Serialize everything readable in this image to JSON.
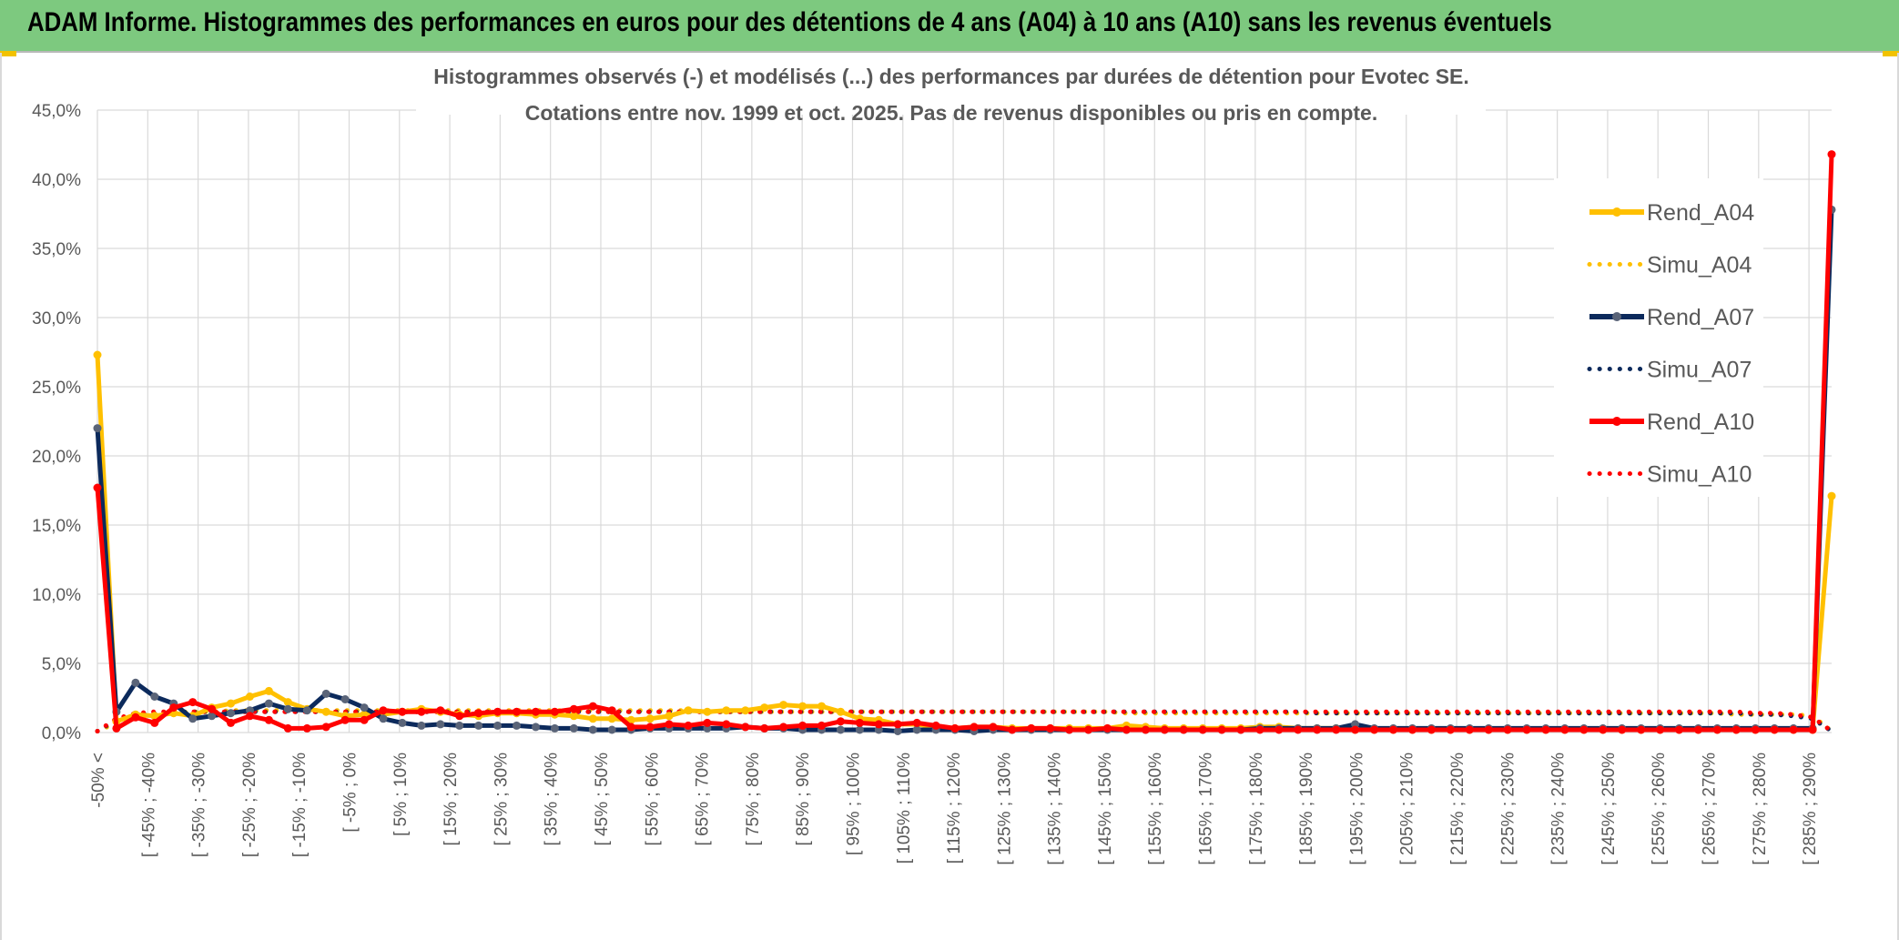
{
  "banner": {
    "title": "ADAM Informe. Histogrammes des performances en euros pour des détentions de 4 ans (A04) à 10 ans (A10) sans les revenus éventuels"
  },
  "colors": {
    "banner": "#7dc97f",
    "A04": "#ffc000",
    "A07": "#0c2a5c",
    "A10": "#ff0000",
    "grid": "#d9d9d9",
    "marker07": "#5a6478"
  },
  "chart_data": {
    "type": "line",
    "title": "Histogrammes observés (-) et modélisés (...) des performances par durées de détention pour Evotec SE.",
    "subtitle": "Cotations entre nov. 1999 et oct. 2025. Pas de revenus disponibles ou pris en compte.",
    "ylim": [
      0,
      45
    ],
    "yticks": [
      "0,0%",
      "5,0%",
      "10,0%",
      "15,0%",
      "20,0%",
      "25,0%",
      "30,0%",
      "35,0%",
      "40,0%",
      "45,0%"
    ],
    "xticklabels": [
      "-50% <",
      "[ -45% ; -40%",
      "[ -35% ; -30%",
      "[ -25% ; -20%",
      "[ -15% ; -10%",
      "[ -5% ; 0%",
      "[ 5% ; 10%",
      "[ 15% ; 20%",
      "[ 25% ; 30%",
      "[ 35% ; 40%",
      "[ 45% ; 50%",
      "[ 55% ; 60%",
      "[ 65% ; 70%",
      "[ 75% ; 80%",
      "[ 85% ; 90%",
      "[ 95% ; 100%",
      "[ 105% ; 110%",
      "[ 115% ; 120%",
      "[ 125% ; 130%",
      "[ 135% ; 140%",
      "[ 145% ; 150%",
      "[ 155% ; 160%",
      "[ 165% ; 170%",
      "[ 175% ; 180%",
      "[ 185% ; 190%",
      "[ 195% ; 200%",
      "[ 205% ; 210%",
      "[ 215% ; 220%",
      "[ 225% ; 230%",
      "[ 235% ; 240%",
      "[ 245% ; 250%",
      "[ 255% ; 260%",
      "[ 265% ; 270%",
      "[ 275% ; 280%",
      "[ 285% ; 290%"
    ],
    "grid": true,
    "legend_position": "right",
    "series": [
      {
        "name": "Rend_A04",
        "style": "solid",
        "values": [
          27.3,
          0.8,
          1.3,
          1.2,
          1.4,
          1.2,
          1.8,
          2.1,
          2.6,
          3.0,
          2.2,
          1.7,
          1.5,
          1.2,
          1.3,
          1.3,
          1.5,
          1.7,
          1.5,
          1.3,
          1.2,
          1.4,
          1.4,
          1.3,
          1.3,
          1.2,
          1.0,
          1.0,
          0.9,
          1.0,
          1.2,
          1.6,
          1.5,
          1.6,
          1.6,
          1.8,
          2.0,
          1.9,
          1.9,
          1.5,
          1.0,
          0.9,
          0.6,
          0.6,
          0.4,
          0.3,
          0.4,
          0.4,
          0.3,
          0.3,
          0.3,
          0.3,
          0.3,
          0.3,
          0.5,
          0.4,
          0.3,
          0.3,
          0.3,
          0.3,
          0.3,
          0.4,
          0.4,
          0.3,
          0.3,
          0.3,
          0.2,
          0.2,
          0.2,
          0.2,
          0.2,
          0.2,
          0.2,
          0.2,
          0.2,
          0.2,
          0.2,
          0.2,
          0.2,
          0.2,
          0.2,
          0.2,
          0.2,
          0.2,
          0.2,
          0.2,
          0.2,
          0.2,
          0.2,
          0.2,
          0.2,
          17.1
        ]
      },
      {
        "name": "Simu_A04",
        "style": "dotted",
        "values": [
          0.1,
          0.7,
          1.1,
          1.3,
          1.4,
          1.5,
          1.5,
          1.6,
          1.6,
          1.6,
          1.6,
          1.6,
          1.6,
          1.6,
          1.6,
          1.6,
          1.6,
          1.6,
          1.6,
          1.6,
          1.6,
          1.6,
          1.6,
          1.6,
          1.6,
          1.6,
          1.6,
          1.6,
          1.6,
          1.6,
          1.6,
          1.6,
          1.5,
          1.5,
          1.5,
          1.5,
          1.5,
          1.5,
          1.5,
          1.5,
          1.5,
          1.5,
          1.5,
          1.5,
          1.5,
          1.5,
          1.5,
          1.5,
          1.5,
          1.5,
          1.5,
          1.5,
          1.5,
          1.5,
          1.4,
          1.4,
          1.4,
          1.4,
          1.4,
          1.4,
          1.4,
          1.4,
          1.4,
          1.4,
          1.4,
          1.4,
          1.4,
          1.4,
          1.4,
          1.4,
          1.4,
          1.4,
          1.4,
          1.4,
          1.4,
          1.4,
          1.4,
          1.4,
          1.4,
          1.4,
          1.4,
          1.4,
          1.4,
          1.4,
          1.4,
          1.4,
          1.3,
          1.3,
          1.3,
          1.3,
          1.2,
          0.1
        ]
      },
      {
        "name": "Rend_A07",
        "style": "solid",
        "values": [
          22.0,
          1.5,
          3.6,
          2.6,
          2.1,
          1.0,
          1.2,
          1.4,
          1.6,
          2.1,
          1.7,
          1.6,
          2.8,
          2.4,
          1.8,
          1.0,
          0.7,
          0.5,
          0.6,
          0.5,
          0.5,
          0.5,
          0.5,
          0.4,
          0.3,
          0.3,
          0.2,
          0.2,
          0.2,
          0.3,
          0.3,
          0.3,
          0.3,
          0.3,
          0.4,
          0.3,
          0.3,
          0.2,
          0.2,
          0.2,
          0.2,
          0.2,
          0.1,
          0.2,
          0.2,
          0.2,
          0.1,
          0.2,
          0.2,
          0.2,
          0.2,
          0.2,
          0.2,
          0.2,
          0.2,
          0.2,
          0.2,
          0.2,
          0.2,
          0.2,
          0.2,
          0.3,
          0.3,
          0.3,
          0.3,
          0.3,
          0.6,
          0.3,
          0.3,
          0.3,
          0.3,
          0.3,
          0.3,
          0.3,
          0.3,
          0.3,
          0.3,
          0.3,
          0.3,
          0.3,
          0.3,
          0.3,
          0.3,
          0.3,
          0.3,
          0.3,
          0.3,
          0.3,
          0.3,
          0.3,
          0.3,
          37.8
        ]
      },
      {
        "name": "Simu_A07",
        "style": "dotted",
        "values": [
          0.1,
          0.9,
          1.3,
          1.4,
          1.5,
          1.5,
          1.5,
          1.5,
          1.5,
          1.5,
          1.5,
          1.5,
          1.5,
          1.5,
          1.5,
          1.5,
          1.5,
          1.5,
          1.5,
          1.5,
          1.5,
          1.5,
          1.5,
          1.5,
          1.5,
          1.5,
          1.5,
          1.5,
          1.5,
          1.5,
          1.5,
          1.5,
          1.5,
          1.5,
          1.5,
          1.5,
          1.5,
          1.5,
          1.5,
          1.5,
          1.5,
          1.5,
          1.5,
          1.5,
          1.5,
          1.5,
          1.5,
          1.5,
          1.5,
          1.5,
          1.5,
          1.5,
          1.5,
          1.5,
          1.5,
          1.5,
          1.5,
          1.5,
          1.5,
          1.5,
          1.5,
          1.5,
          1.5,
          1.5,
          1.4,
          1.4,
          1.4,
          1.4,
          1.4,
          1.4,
          1.4,
          1.4,
          1.4,
          1.4,
          1.4,
          1.4,
          1.4,
          1.4,
          1.4,
          1.4,
          1.4,
          1.4,
          1.4,
          1.4,
          1.4,
          1.4,
          1.4,
          1.3,
          1.3,
          1.2,
          1.0,
          0.1
        ]
      },
      {
        "name": "Rend_A10",
        "style": "solid",
        "values": [
          17.7,
          0.3,
          1.1,
          0.7,
          1.8,
          2.2,
          1.7,
          0.7,
          1.2,
          0.9,
          0.3,
          0.3,
          0.4,
          0.9,
          0.9,
          1.6,
          1.5,
          1.5,
          1.6,
          1.2,
          1.4,
          1.5,
          1.5,
          1.5,
          1.5,
          1.7,
          1.9,
          1.6,
          0.4,
          0.4,
          0.6,
          0.5,
          0.7,
          0.6,
          0.4,
          0.3,
          0.4,
          0.5,
          0.5,
          0.8,
          0.7,
          0.6,
          0.6,
          0.7,
          0.5,
          0.3,
          0.4,
          0.4,
          0.2,
          0.3,
          0.3,
          0.2,
          0.2,
          0.3,
          0.2,
          0.2,
          0.2,
          0.2,
          0.2,
          0.2,
          0.2,
          0.2,
          0.2,
          0.2,
          0.2,
          0.2,
          0.2,
          0.2,
          0.2,
          0.2,
          0.2,
          0.2,
          0.2,
          0.2,
          0.2,
          0.2,
          0.2,
          0.2,
          0.2,
          0.2,
          0.2,
          0.2,
          0.2,
          0.2,
          0.2,
          0.2,
          0.2,
          0.2,
          0.2,
          0.2,
          0.2,
          41.8
        ]
      },
      {
        "name": "Simu_A10",
        "style": "dotted",
        "values": [
          0.1,
          1.0,
          1.4,
          1.5,
          1.5,
          1.5,
          1.5,
          1.5,
          1.5,
          1.5,
          1.5,
          1.5,
          1.5,
          1.5,
          1.5,
          1.5,
          1.5,
          1.5,
          1.5,
          1.5,
          1.5,
          1.5,
          1.5,
          1.5,
          1.5,
          1.5,
          1.5,
          1.5,
          1.5,
          1.5,
          1.5,
          1.5,
          1.5,
          1.5,
          1.5,
          1.5,
          1.5,
          1.5,
          1.5,
          1.5,
          1.5,
          1.5,
          1.5,
          1.5,
          1.5,
          1.5,
          1.5,
          1.5,
          1.5,
          1.5,
          1.5,
          1.5,
          1.5,
          1.5,
          1.5,
          1.5,
          1.5,
          1.5,
          1.5,
          1.5,
          1.5,
          1.5,
          1.5,
          1.5,
          1.5,
          1.5,
          1.5,
          1.5,
          1.5,
          1.5,
          1.5,
          1.5,
          1.5,
          1.5,
          1.5,
          1.5,
          1.5,
          1.5,
          1.5,
          1.5,
          1.5,
          1.5,
          1.5,
          1.5,
          1.5,
          1.5,
          1.5,
          1.4,
          1.4,
          1.3,
          1.1,
          0.1
        ]
      }
    ]
  }
}
